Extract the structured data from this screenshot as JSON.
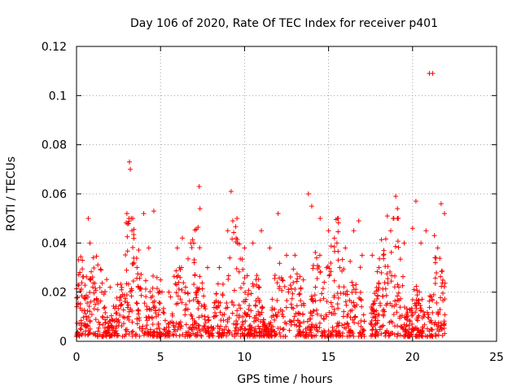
{
  "chart_data": {
    "type": "scatter",
    "title": "Day 106 of 2020, Rate Of TEC Index for receiver p401",
    "xlabel": "GPS time / hours",
    "ylabel": "ROTI / TECUs",
    "xlim": [
      0,
      25
    ],
    "ylim": [
      0,
      0.12
    ],
    "xticks": [
      0,
      5,
      10,
      15,
      20,
      25
    ],
    "xtick_labels": [
      "0",
      "5",
      "10",
      "15",
      "20",
      "25"
    ],
    "yticks": [
      0,
      0.02,
      0.04,
      0.06,
      0.08,
      0.1,
      0.12
    ],
    "ytick_labels": [
      "0",
      "0.02",
      "0.04",
      "0.06",
      "0.08",
      "0.1",
      "0.12"
    ],
    "grid": true,
    "marker": "+",
    "color": "#ff0000",
    "series": [
      {
        "name": "ROTI",
        "description": "Dense band of ROTI values mostly between 0.003 and 0.03 TECU/min from 0 to ~22 h, with a data gap around 17.2–17.5 h",
        "x": [
          0.1,
          0.2,
          0.35,
          0.5,
          0.7,
          0.8,
          1.0,
          1.5,
          2.0,
          2.6,
          3.0,
          3.1,
          3.15,
          3.2,
          3.3,
          3.6,
          4.0,
          4.3,
          4.6,
          5.0,
          5.5,
          6.0,
          6.3,
          6.8,
          7.0,
          7.3,
          7.35,
          7.8,
          8.5,
          9.0,
          9.2,
          9.3,
          9.5,
          10.0,
          10.5,
          11.0,
          11.5,
          12.0,
          12.5,
          13.0,
          13.5,
          13.8,
          14.0,
          14.5,
          15.0,
          15.5,
          16.0,
          16.5,
          16.8,
          17.0,
          17.6,
          18.0,
          18.5,
          18.7,
          19.0,
          19.1,
          19.5,
          20.0,
          20.2,
          20.5,
          20.8,
          21.0,
          21.2,
          21.3,
          21.5,
          21.7,
          21.9
        ],
        "y": [
          0.015,
          0.028,
          0.033,
          0.018,
          0.05,
          0.04,
          0.034,
          0.02,
          0.022,
          0.018,
          0.052,
          0.048,
          0.073,
          0.07,
          0.045,
          0.03,
          0.052,
          0.038,
          0.053,
          0.025,
          0.02,
          0.038,
          0.042,
          0.04,
          0.032,
          0.063,
          0.054,
          0.03,
          0.03,
          0.045,
          0.061,
          0.049,
          0.042,
          0.038,
          0.04,
          0.045,
          0.038,
          0.052,
          0.035,
          0.035,
          0.025,
          0.06,
          0.055,
          0.05,
          0.045,
          0.04,
          0.038,
          0.045,
          0.049,
          0.035,
          0.035,
          0.03,
          0.051,
          0.045,
          0.059,
          0.054,
          0.04,
          0.046,
          0.057,
          0.04,
          0.045,
          0.109,
          0.109,
          0.043,
          0.038,
          0.056,
          0.052
        ]
      }
    ]
  }
}
